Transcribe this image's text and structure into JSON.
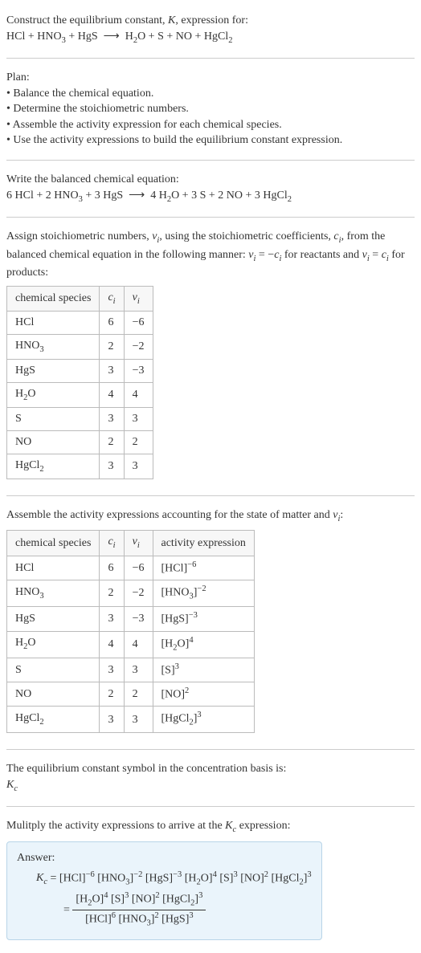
{
  "header": {
    "line1": "Construct the equilibrium constant, K, expression for:",
    "line2": "HCl + HNO₃ + HgS ⟶ H₂O + S + NO + HgCl₂"
  },
  "plan": {
    "title": "Plan:",
    "items": [
      "• Balance the chemical equation.",
      "• Determine the stoichiometric numbers.",
      "• Assemble the activity expression for each chemical species.",
      "• Use the activity expressions to build the equilibrium constant expression."
    ]
  },
  "balanced": {
    "intro": "Write the balanced chemical equation:",
    "eq": "6 HCl + 2 HNO₃ + 3 HgS ⟶ 4 H₂O + 3 S + 2 NO + 3 HgCl₂"
  },
  "stoich": {
    "intro_a": "Assign stoichiometric numbers, νᵢ, using the stoichiometric coefficients, cᵢ, from the balanced chemical equation in the following manner: νᵢ = −cᵢ for reactants and νᵢ = cᵢ for products:",
    "headers": [
      "chemical species",
      "cᵢ",
      "νᵢ"
    ],
    "rows": [
      [
        "HCl",
        "6",
        "−6"
      ],
      [
        "HNO₃",
        "2",
        "−2"
      ],
      [
        "HgS",
        "3",
        "−3"
      ],
      [
        "H₂O",
        "4",
        "4"
      ],
      [
        "S",
        "3",
        "3"
      ],
      [
        "NO",
        "2",
        "2"
      ],
      [
        "HgCl₂",
        "3",
        "3"
      ]
    ]
  },
  "activity": {
    "intro": "Assemble the activity expressions accounting for the state of matter and νᵢ:",
    "headers": [
      "chemical species",
      "cᵢ",
      "νᵢ",
      "activity expression"
    ],
    "rows": [
      [
        "HCl",
        "6",
        "−6",
        "[HCl]⁻⁶"
      ],
      [
        "HNO₃",
        "2",
        "−2",
        "[HNO₃]⁻²"
      ],
      [
        "HgS",
        "3",
        "−3",
        "[HgS]⁻³"
      ],
      [
        "H₂O",
        "4",
        "4",
        "[H₂O]⁴"
      ],
      [
        "S",
        "3",
        "3",
        "[S]³"
      ],
      [
        "NO",
        "2",
        "2",
        "[NO]²"
      ],
      [
        "HgCl₂",
        "3",
        "3",
        "[HgCl₂]³"
      ]
    ]
  },
  "symbol": {
    "intro": "The equilibrium constant symbol in the concentration basis is:",
    "sym": "K𝒸"
  },
  "multiply": {
    "intro": "Mulitply the activity expressions to arrive at the K𝒸 expression:"
  },
  "answer": {
    "label": "Answer:",
    "line1": "K𝒸 = [HCl]⁻⁶ [HNO₃]⁻² [HgS]⁻³ [H₂O]⁴ [S]³ [NO]² [HgCl₂]³",
    "eq_prefix": "= ",
    "num": "[H₂O]⁴ [S]³ [NO]² [HgCl₂]³",
    "den": "[HCl]⁶ [HNO₃]² [HgS]³"
  },
  "colors": {
    "text": "#333333",
    "border": "#bbbbbb",
    "hr": "#cccccc",
    "answer_bg": "#eaf4fb",
    "answer_border": "#b8d4e8"
  }
}
